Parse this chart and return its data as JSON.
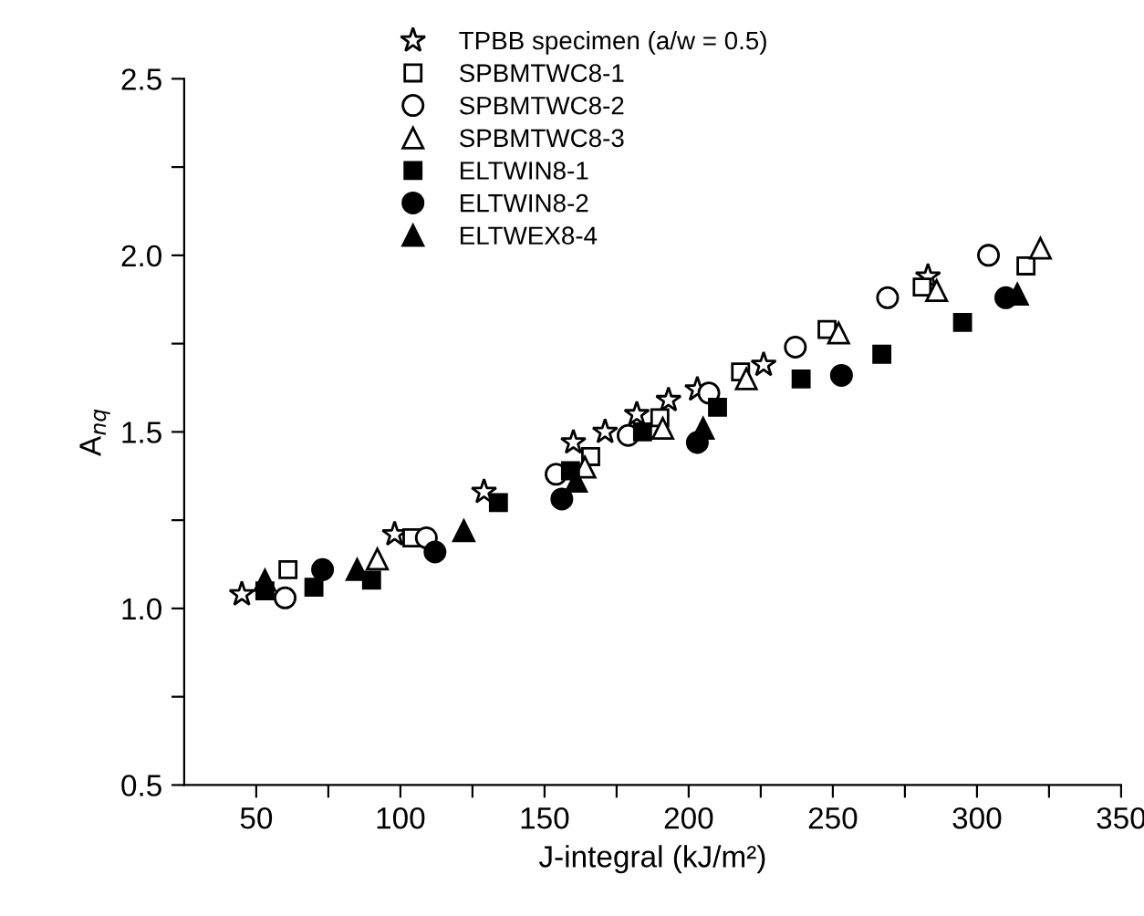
{
  "chart_data": {
    "type": "scatter",
    "xlabel": "J-integral (kJ/m²)",
    "ylabel": "A$_{nq}$",
    "xlim": [
      25,
      350
    ],
    "ylim": [
      0.5,
      2.5
    ],
    "xticks": [
      50,
      {
        "value": 75,
        "label": null
      },
      100,
      {
        "value": 125,
        "label": null
      },
      150,
      {
        "value": 175,
        "label": null
      },
      200,
      {
        "value": 225,
        "label": null
      },
      250,
      {
        "value": 275,
        "label": null
      },
      300,
      {
        "value": 325,
        "label": null
      },
      350
    ],
    "yticks": [
      0.5,
      {
        "value": 0.75,
        "label": null
      },
      {
        "value": 1.0,
        "label": "1.0"
      },
      {
        "value": 1.25,
        "label": null
      },
      1.5,
      {
        "value": 1.75,
        "label": null
      },
      {
        "value": 2.0,
        "label": "2.0"
      },
      {
        "value": 2.25,
        "label": null
      },
      2.5
    ],
    "grid": false,
    "legend": "top",
    "series": [
      {
        "name": "TPBB specimen (a/w = 0.5)",
        "color": "#ffffff",
        "marker": "star",
        "x": [
          45,
          72,
          98,
          129,
          160,
          171,
          182,
          193,
          203,
          226,
          283
        ],
        "values": [
          1.04,
          null,
          1.21,
          1.33,
          1.47,
          1.5,
          1.55,
          1.59,
          1.62,
          1.69,
          1.94
        ]
      },
      {
        "name": "SPBMTWC8-1",
        "color": "#ffffff",
        "marker": "square",
        "x": [
          61,
          104,
          166,
          190,
          218,
          248,
          281,
          317
        ],
        "values": [
          1.11,
          1.2,
          1.43,
          1.54,
          1.67,
          1.79,
          1.91,
          1.97
        ]
      },
      {
        "name": "SPBMTWC8-2",
        "color": "#ffffff",
        "marker": "circle",
        "x": [
          60,
          109,
          154,
          179,
          207,
          237,
          269,
          304
        ],
        "values": [
          1.03,
          1.2,
          1.38,
          1.49,
          1.61,
          1.74,
          1.88,
          2.0
        ]
      },
      {
        "name": "SPBMTWC8-3",
        "color": "#ffffff",
        "marker": "triangle",
        "x": [
          92,
          164,
          191,
          220,
          252,
          286,
          322
        ],
        "values": [
          1.14,
          1.4,
          1.51,
          1.65,
          1.78,
          1.9,
          2.02
        ]
      },
      {
        "name": "ELTWIN8-1",
        "color": "#000000",
        "marker": "square",
        "x": [
          53,
          70,
          90,
          134,
          159,
          184,
          210,
          239,
          267,
          295
        ],
        "values": [
          1.05,
          1.06,
          1.08,
          1.3,
          1.39,
          1.5,
          1.57,
          1.65,
          1.72,
          1.81
        ]
      },
      {
        "name": "ELTWIN8-2",
        "color": "#000000",
        "marker": "circle",
        "x": [
          73,
          112,
          156,
          203,
          253,
          310
        ],
        "values": [
          1.11,
          1.16,
          1.31,
          1.47,
          1.66,
          1.88
        ]
      },
      {
        "name": "ELTWEX8-4",
        "color": "#000000",
        "marker": "triangle",
        "x": [
          53,
          85,
          122,
          161,
          205,
          314
        ],
        "values": [
          1.08,
          1.11,
          1.22,
          1.36,
          1.51,
          1.89
        ]
      }
    ]
  }
}
